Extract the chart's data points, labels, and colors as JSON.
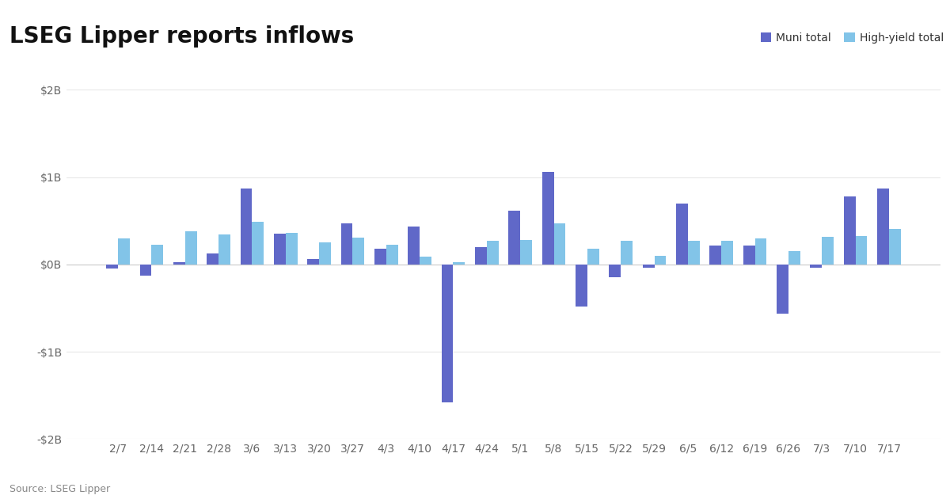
{
  "title": "LSEG Lipper reports inflows",
  "source": "Source: LSEG Lipper",
  "legend_labels": [
    "Muni total",
    "High-yield total"
  ],
  "muni_color": "#6068C8",
  "hy_color": "#82C4E8",
  "background_color": "#ffffff",
  "ylim": [
    -2000000000,
    2000000000
  ],
  "yticks": [
    -2000000000,
    -1000000000,
    0,
    1000000000,
    2000000000
  ],
  "ytick_labels": [
    "-$2B",
    "-$1B",
    "$0B",
    "$1B",
    "$2B"
  ],
  "categories": [
    "2/7",
    "2/14",
    "2/21",
    "2/28",
    "3/6",
    "3/13",
    "3/20",
    "3/27",
    "4/3",
    "4/10",
    "4/17",
    "4/24",
    "5/1",
    "5/8",
    "5/15",
    "5/22",
    "5/29",
    "6/5",
    "6/12",
    "6/19",
    "6/26",
    "7/3",
    "7/10",
    "7/17"
  ],
  "muni_values": [
    -50000000,
    -130000000,
    30000000,
    130000000,
    870000000,
    350000000,
    60000000,
    470000000,
    180000000,
    430000000,
    -1580000000,
    200000000,
    620000000,
    1060000000,
    -480000000,
    -150000000,
    -40000000,
    700000000,
    220000000,
    220000000,
    -560000000,
    -40000000,
    780000000,
    870000000
  ],
  "hy_values": [
    300000000,
    230000000,
    380000000,
    340000000,
    490000000,
    360000000,
    250000000,
    310000000,
    230000000,
    90000000,
    30000000,
    270000000,
    280000000,
    470000000,
    180000000,
    270000000,
    100000000,
    270000000,
    270000000,
    300000000,
    150000000,
    320000000,
    330000000,
    410000000
  ],
  "bar_width": 0.35,
  "title_fontsize": 20,
  "axis_label_fontsize": 10,
  "legend_fontsize": 10,
  "grid_color": "#e8e8e8",
  "spine_color": "#cccccc"
}
